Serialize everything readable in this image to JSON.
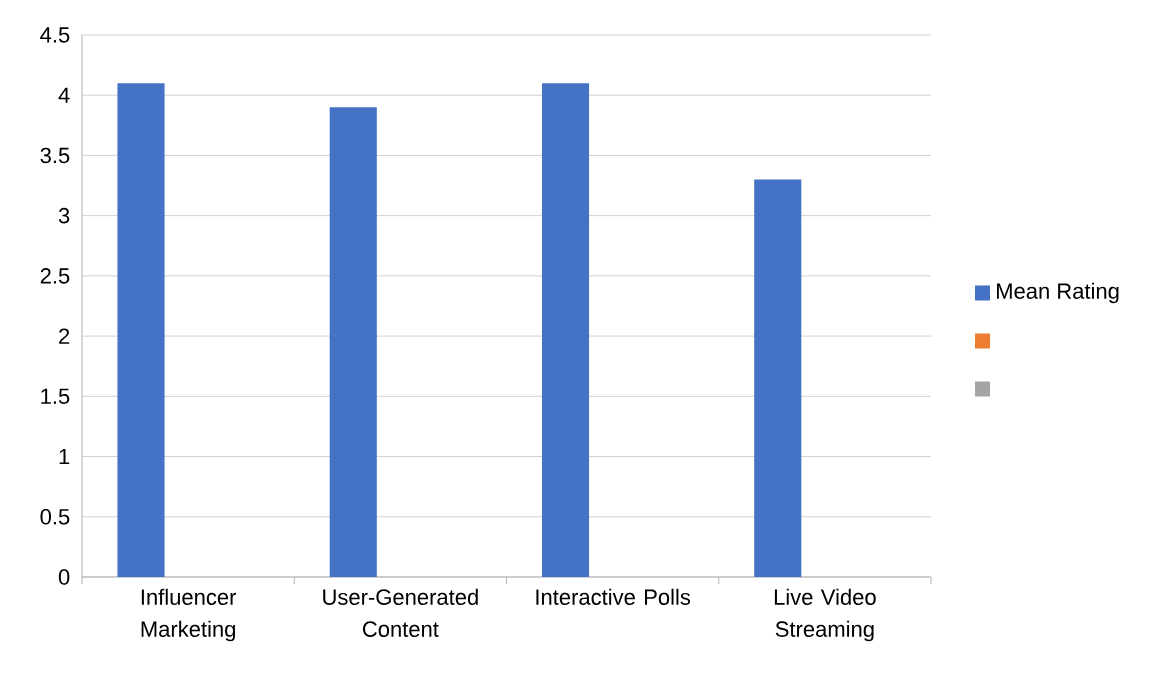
{
  "chart_data": {
    "type": "bar",
    "categories": [
      "Influencer Marketing",
      "User-Generated Content",
      "Interactive Polls",
      "Live Video Streaming"
    ],
    "series": [
      {
        "name": "Mean Rating",
        "color": "#4472c4",
        "values": [
          4.1,
          3.9,
          4.1,
          3.3
        ]
      },
      {
        "color": "#ed7d31",
        "values": [
          null,
          null,
          null,
          null
        ]
      },
      {
        "color": "#a5a5a5",
        "values": [
          null,
          null,
          null,
          null
        ]
      }
    ],
    "ylim": [
      0,
      4.5
    ],
    "yticks": [
      0,
      0.5,
      1,
      1.5,
      2,
      2.5,
      3,
      3.5,
      4,
      4.5
    ],
    "grid": "y",
    "legend": "right"
  }
}
